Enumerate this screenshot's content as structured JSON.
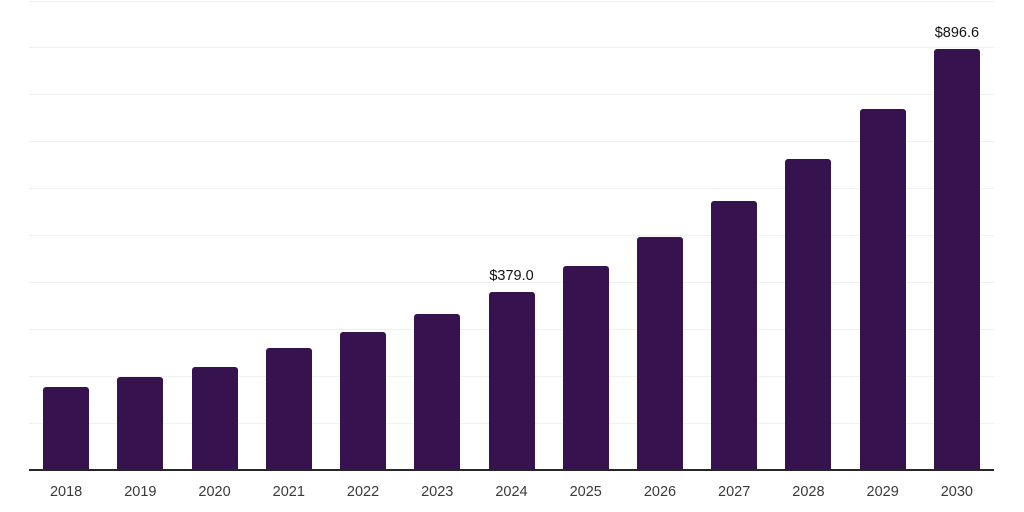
{
  "chart_data": {
    "type": "bar",
    "title": "",
    "xlabel": "",
    "ylabel": "",
    "categories": [
      "2018",
      "2019",
      "2020",
      "2021",
      "2022",
      "2023",
      "2024",
      "2025",
      "2026",
      "2027",
      "2028",
      "2029",
      "2030"
    ],
    "values": [
      176.6,
      197.9,
      219.9,
      258.9,
      293.0,
      332.1,
      379.0,
      433.5,
      496.1,
      572.8,
      662.3,
      767.9,
      896.6
    ],
    "labeled_points": [
      {
        "category": "2024",
        "label": "$379.0"
      },
      {
        "category": "2030",
        "label": "$896.6"
      }
    ],
    "ylim": [
      0,
      1000
    ],
    "gridline_interval": 100,
    "grid": "horizontal",
    "legend": "none",
    "y_axis_tick_labels": "none",
    "colors": {
      "bar": "#36124E",
      "gridline": "#f0f0f0",
      "axis_line": "#262626",
      "tick_label": "#3a3a3a",
      "value_label": "#111111",
      "background": "#ffffff"
    }
  }
}
